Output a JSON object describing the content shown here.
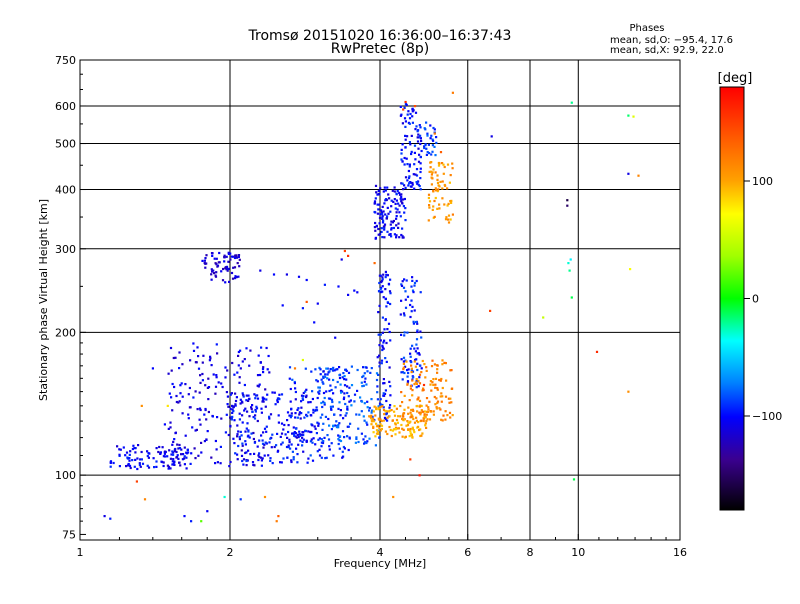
{
  "chart_data": {
    "type": "scatter",
    "title": "Tromsø 20151020 16:36:00–16:37:43",
    "subtitle": "RwPretec (8p)",
    "stats": {
      "heading": "Phases",
      "line1": "mean, sd,O: −95.4, 17.6",
      "line2": "mean, sd,X:  92.9, 22.0"
    },
    "xlabel": "Frequency [MHz]",
    "ylabel": "Stationary phase Virtual Height [km]",
    "x_scale": "log",
    "y_scale": "log",
    "xlim": [
      1,
      16
    ],
    "ylim": [
      73,
      750
    ],
    "xticks": [
      1,
      2,
      4,
      6,
      8,
      10,
      16
    ],
    "xtick_labels": [
      "1",
      "2",
      "4",
      "6",
      "8",
      "10",
      "16"
    ],
    "yticks": [
      75,
      100,
      200,
      300,
      400,
      500,
      600,
      750
    ],
    "ytick_labels": [
      "75",
      "100",
      "200",
      "300",
      "400",
      "500",
      "600",
      "750"
    ],
    "grid": true,
    "colorbar": {
      "label": "[deg]",
      "range": [
        -180,
        180
      ],
      "ticks": [
        100,
        0,
        -100
      ],
      "tick_labels": [
        "100",
        "0",
        "−100"
      ]
    },
    "clusters": [
      {
        "x_min": 1.15,
        "x_max": 1.65,
        "y_min": 103,
        "y_max": 116,
        "phase": -105,
        "count": 110
      },
      {
        "x_min": 1.5,
        "x_max": 2.4,
        "y_min": 104,
        "y_max": 190,
        "phase": -110,
        "count": 220
      },
      {
        "x_min": 2.0,
        "x_max": 3.0,
        "y_min": 106,
        "y_max": 150,
        "phase": -100,
        "count": 200
      },
      {
        "x_min": 2.6,
        "x_max": 3.5,
        "y_min": 108,
        "y_max": 170,
        "phase": -95,
        "count": 140
      },
      {
        "x_min": 3.0,
        "x_max": 4.0,
        "y_min": 115,
        "y_max": 170,
        "phase": -85,
        "count": 140
      },
      {
        "x_min": 1.75,
        "x_max": 2.1,
        "y_min": 255,
        "y_max": 295,
        "phase": -115,
        "count": 70
      },
      {
        "x_min": 3.95,
        "x_max": 4.2,
        "y_min": 130,
        "y_max": 270,
        "phase": -100,
        "count": 90
      },
      {
        "x_min": 4.4,
        "x_max": 4.85,
        "y_min": 150,
        "y_max": 265,
        "phase": -95,
        "count": 90
      },
      {
        "x_min": 3.8,
        "x_max": 5.0,
        "y_min": 120,
        "y_max": 140,
        "phase": 100,
        "count": 140
      },
      {
        "x_min": 4.4,
        "x_max": 5.6,
        "y_min": 130,
        "y_max": 175,
        "phase": 115,
        "count": 130
      },
      {
        "x_min": 3.9,
        "x_max": 4.5,
        "y_min": 315,
        "y_max": 410,
        "phase": -105,
        "count": 130
      },
      {
        "x_min": 4.4,
        "x_max": 4.85,
        "y_min": 400,
        "y_max": 610,
        "phase": -100,
        "count": 100
      },
      {
        "x_min": 5.0,
        "x_max": 5.6,
        "y_min": 340,
        "y_max": 460,
        "phase": 105,
        "count": 70
      },
      {
        "x_min": 4.9,
        "x_max": 5.2,
        "y_min": 470,
        "y_max": 560,
        "phase": -90,
        "count": 30
      }
    ],
    "points": [
      {
        "x": 1.95,
        "y": 288,
        "phase": -120
      },
      {
        "x": 1.85,
        "y": 270,
        "phase": -115
      },
      {
        "x": 2.3,
        "y": 270,
        "phase": -110
      },
      {
        "x": 2.45,
        "y": 265,
        "phase": -100
      },
      {
        "x": 2.6,
        "y": 265,
        "phase": -110
      },
      {
        "x": 2.75,
        "y": 262,
        "phase": -105
      },
      {
        "x": 2.85,
        "y": 258,
        "phase": -100
      },
      {
        "x": 3.1,
        "y": 252,
        "phase": -95
      },
      {
        "x": 3.3,
        "y": 250,
        "phase": -100
      },
      {
        "x": 3.45,
        "y": 240,
        "phase": -105
      },
      {
        "x": 3.55,
        "y": 245,
        "phase": -100
      },
      {
        "x": 3.6,
        "y": 243,
        "phase": -105
      },
      {
        "x": 2.55,
        "y": 228,
        "phase": -100
      },
      {
        "x": 2.8,
        "y": 225,
        "phase": -95
      },
      {
        "x": 2.85,
        "y": 232,
        "phase": 140
      },
      {
        "x": 3.0,
        "y": 230,
        "phase": -105
      },
      {
        "x": 2.95,
        "y": 210,
        "phase": -100
      },
      {
        "x": 3.25,
        "y": 195,
        "phase": -105
      },
      {
        "x": 3.4,
        "y": 297,
        "phase": 150
      },
      {
        "x": 3.45,
        "y": 290,
        "phase": 160
      },
      {
        "x": 3.35,
        "y": 285,
        "phase": -110
      },
      {
        "x": 3.9,
        "y": 280,
        "phase": 130
      },
      {
        "x": 2.8,
        "y": 175,
        "phase": 60
      },
      {
        "x": 2.7,
        "y": 168,
        "phase": 120
      },
      {
        "x": 1.4,
        "y": 168,
        "phase": -100
      },
      {
        "x": 1.33,
        "y": 140,
        "phase": 110
      },
      {
        "x": 1.5,
        "y": 140,
        "phase": 80
      },
      {
        "x": 1.48,
        "y": 128,
        "phase": -100
      },
      {
        "x": 1.3,
        "y": 97,
        "phase": 150
      },
      {
        "x": 1.35,
        "y": 89,
        "phase": 115
      },
      {
        "x": 1.12,
        "y": 82,
        "phase": -110
      },
      {
        "x": 1.15,
        "y": 81,
        "phase": -95
      },
      {
        "x": 1.62,
        "y": 82,
        "phase": -100
      },
      {
        "x": 1.67,
        "y": 80,
        "phase": -95
      },
      {
        "x": 1.75,
        "y": 80,
        "phase": 20
      },
      {
        "x": 1.8,
        "y": 84,
        "phase": -105
      },
      {
        "x": 1.95,
        "y": 90,
        "phase": -30
      },
      {
        "x": 2.1,
        "y": 89,
        "phase": -90
      },
      {
        "x": 2.35,
        "y": 90,
        "phase": 110
      },
      {
        "x": 2.5,
        "y": 82,
        "phase": 135
      },
      {
        "x": 2.48,
        "y": 80,
        "phase": 120
      },
      {
        "x": 4.25,
        "y": 90,
        "phase": 110
      },
      {
        "x": 4.3,
        "y": 128,
        "phase": 105
      },
      {
        "x": 4.6,
        "y": 108,
        "phase": 150
      },
      {
        "x": 4.8,
        "y": 100,
        "phase": 170
      },
      {
        "x": 4.9,
        "y": 155,
        "phase": 160
      },
      {
        "x": 6.7,
        "y": 518,
        "phase": -110
      },
      {
        "x": 6.65,
        "y": 222,
        "phase": 150
      },
      {
        "x": 8.5,
        "y": 215,
        "phase": 50
      },
      {
        "x": 9.5,
        "y": 380,
        "phase": -160
      },
      {
        "x": 9.5,
        "y": 370,
        "phase": -150
      },
      {
        "x": 9.7,
        "y": 610,
        "phase": -20
      },
      {
        "x": 9.55,
        "y": 280,
        "phase": -30
      },
      {
        "x": 9.65,
        "y": 285,
        "phase": -40
      },
      {
        "x": 9.6,
        "y": 270,
        "phase": -20
      },
      {
        "x": 9.7,
        "y": 237,
        "phase": -10
      },
      {
        "x": 9.8,
        "y": 98,
        "phase": -10
      },
      {
        "x": 10.9,
        "y": 182,
        "phase": 160
      },
      {
        "x": 12.6,
        "y": 573,
        "phase": -15
      },
      {
        "x": 12.9,
        "y": 570,
        "phase": 60
      },
      {
        "x": 12.6,
        "y": 432,
        "phase": -110
      },
      {
        "x": 13.2,
        "y": 428,
        "phase": 115
      },
      {
        "x": 12.7,
        "y": 272,
        "phase": 70
      },
      {
        "x": 12.6,
        "y": 150,
        "phase": 110
      },
      {
        "x": 5.6,
        "y": 640,
        "phase": 120
      },
      {
        "x": 5.15,
        "y": 525,
        "phase": 120
      },
      {
        "x": 5.3,
        "y": 480,
        "phase": 135
      },
      {
        "x": 4.7,
        "y": 600,
        "phase": 145
      },
      {
        "x": 4.5,
        "y": 612,
        "phase": 160
      },
      {
        "x": 4.45,
        "y": 590,
        "phase": 150
      }
    ]
  }
}
